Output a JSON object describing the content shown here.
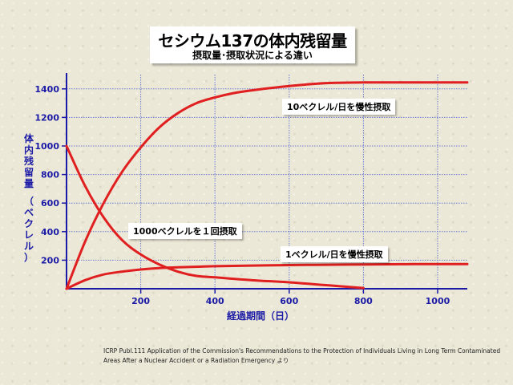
{
  "title": "セシウム137の体内残留量",
  "subtitle": "摂取量･摂取状況による違い",
  "citation": {
    "line1": "ICRP Publ.111   Application of the Commission's Recommendations to the Protection of Individuals Living in Long Term Contaminated",
    "line2": "Areas After a Nuclear Accident or a Radiation Emergency より"
  },
  "colors": {
    "axis": "#1a1aa6",
    "grid": "#6a7ad0",
    "line": "#e02020"
  },
  "chart_data": {
    "type": "line",
    "xlabel": "経過期間（日）",
    "ylabel_chars": [
      "体",
      "内",
      "残",
      "留",
      "量",
      "（",
      "ベ",
      "ク",
      "レ",
      "ル",
      "）"
    ],
    "xlim": [
      0,
      1080
    ],
    "ylim": [
      0,
      1500
    ],
    "xticks": [
      200,
      400,
      600,
      800,
      1000
    ],
    "yticks": [
      200,
      400,
      600,
      800,
      1000,
      1200,
      1400
    ],
    "grid": true,
    "series": [
      {
        "name": "10ベクレル/日を慢性摂取",
        "x": [
          0,
          50,
          100,
          150,
          200,
          250,
          300,
          350,
          400,
          450,
          500,
          600,
          700,
          800,
          900,
          1000,
          1080
        ],
        "y": [
          0,
          330,
          600,
          820,
          990,
          1130,
          1230,
          1300,
          1340,
          1370,
          1390,
          1420,
          1440,
          1445,
          1445,
          1445,
          1445
        ]
      },
      {
        "name": "1000ベクレルを１回摂取",
        "x": [
          0,
          50,
          100,
          150,
          200,
          250,
          300,
          350,
          400,
          500,
          600,
          700,
          800
        ],
        "y": [
          1000,
          720,
          500,
          340,
          240,
          170,
          120,
          90,
          80,
          60,
          45,
          25,
          5
        ]
      },
      {
        "name": "1ベクレル/日を慢性摂取",
        "x": [
          0,
          50,
          100,
          150,
          200,
          250,
          300,
          400,
          500,
          600,
          700,
          800,
          900,
          1000,
          1080
        ],
        "y": [
          0,
          60,
          100,
          120,
          135,
          145,
          150,
          158,
          162,
          166,
          168,
          170,
          172,
          173,
          173
        ]
      }
    ],
    "annotations": {
      "a10": "10ベクレル/日を慢性摂取",
      "a1000": "1000ベクレルを１回摂取",
      "a1": "1ベクレル/日を慢性摂取"
    }
  }
}
